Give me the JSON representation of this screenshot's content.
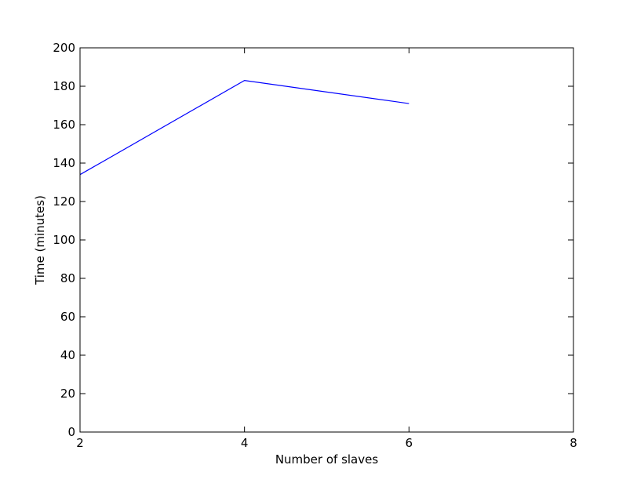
{
  "chart_data": {
    "type": "line",
    "title": "",
    "xlabel": "Number of slaves",
    "ylabel": "Time (minutes)",
    "x": [
      2,
      4,
      6
    ],
    "series": [
      {
        "values": [
          134,
          183,
          171
        ],
        "color": "#0000ff"
      }
    ],
    "xlim": [
      2,
      8
    ],
    "ylim": [
      0,
      200
    ],
    "xticks": [
      2,
      4,
      6,
      8
    ],
    "yticks": [
      0,
      20,
      40,
      60,
      80,
      100,
      120,
      140,
      160,
      180,
      200
    ],
    "grid": false,
    "legend": "none"
  }
}
